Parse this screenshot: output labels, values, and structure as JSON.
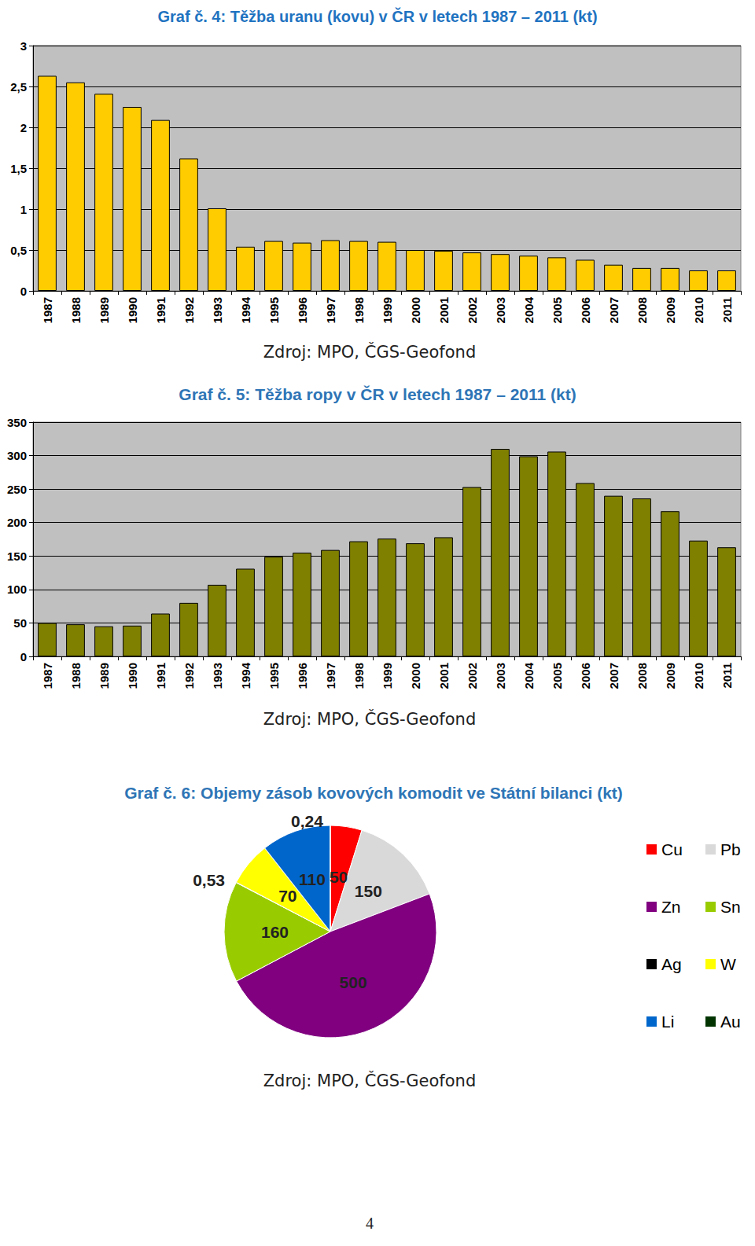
{
  "chart_data": [
    {
      "type": "bar",
      "title": "Graf č. 4: Těžba uranu (kovu) v ČR v letech 1987 – 2011 (kt)",
      "annotations": [
        "Zdroj: MPO, ČGS-Geofond"
      ],
      "categories": [
        "1987",
        "1988",
        "1989",
        "1990",
        "1991",
        "1992",
        "1993",
        "1994",
        "1995",
        "1996",
        "1997",
        "1998",
        "1999",
        "2000",
        "2001",
        "2002",
        "2003",
        "2004",
        "2005",
        "2006",
        "2007",
        "2008",
        "2009",
        "2010",
        "2011"
      ],
      "values": [
        2.63,
        2.55,
        2.41,
        2.25,
        2.09,
        1.62,
        1.01,
        0.54,
        0.61,
        0.59,
        0.62,
        0.61,
        0.6,
        0.5,
        0.49,
        0.47,
        0.45,
        0.43,
        0.41,
        0.38,
        0.32,
        0.28,
        0.28,
        0.25,
        0.25
      ],
      "color": "#ffcc00",
      "ylim": [
        0,
        3
      ],
      "yticks": [
        0,
        {
          "value": 0.5,
          "label": "0,5"
        },
        1,
        {
          "value": 1.5,
          "label": "1,5"
        },
        2,
        {
          "value": 2.5,
          "label": "2,5"
        },
        3
      ],
      "grid": true
    },
    {
      "type": "bar",
      "title": "Graf č. 5: Těžba ropy v ČR v letech 1987 – 2011 (kt)",
      "annotations": [
        "Zdroj: MPO, ČGS-Geofond"
      ],
      "categories": [
        "1987",
        "1988",
        "1989",
        "1990",
        "1991",
        "1992",
        "1993",
        "1994",
        "1995",
        "1996",
        "1997",
        "1998",
        "1999",
        "2000",
        "2001",
        "2002",
        "2003",
        "2004",
        "2005",
        "2006",
        "2007",
        "2008",
        "2009",
        "2010",
        "2011"
      ],
      "values": [
        50,
        48,
        45,
        46,
        64,
        80,
        107,
        131,
        149,
        155,
        159,
        172,
        176,
        169,
        178,
        253,
        310,
        299,
        306,
        259,
        240,
        236,
        217,
        173,
        163
      ],
      "color": "#808000",
      "ylim": [
        0,
        350
      ],
      "yticks": [
        0,
        50,
        100,
        150,
        200,
        250,
        300,
        350
      ],
      "grid": true
    },
    {
      "type": "pie",
      "title": "Graf č. 6: Objemy zásob kovových komodit ve Státní bilanci (kt)",
      "annotations": [
        "Zdroj: MPO, ČGS-Geofond"
      ],
      "categories": [
        "Cu",
        "Pb",
        "Zn",
        "Sn",
        "Ag",
        "W",
        "Li",
        "Au"
      ],
      "values": [
        50,
        150,
        500,
        160,
        0.53,
        70,
        110,
        0.24
      ],
      "value_labels": [
        "50",
        "150",
        "500",
        "160",
        "0,53",
        "70",
        "110",
        "0,24"
      ],
      "colors": [
        "#ff0000",
        "#d9d9d9",
        "#800080",
        "#99cc00",
        "#000000",
        "#ffff00",
        "#0066cc",
        "#003300"
      ],
      "data_labels": true,
      "legend": "right"
    }
  ],
  "footer": "4"
}
